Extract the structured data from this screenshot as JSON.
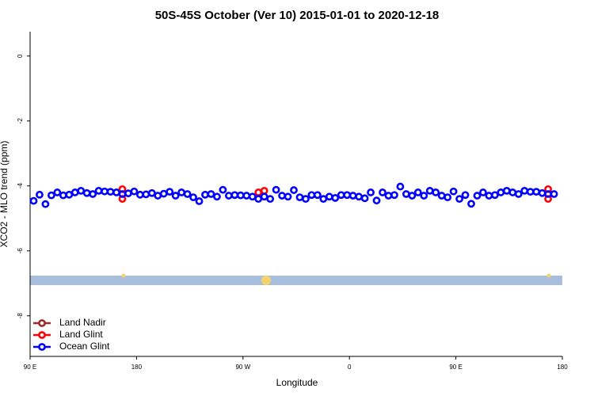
{
  "chart_data": {
    "type": "scatter",
    "title": "50S-45S October (Ver 10)   2015-01-01 to 2020-12-18",
    "xlabel": "Longitude",
    "ylabel": "XCO2 - MLO trend (ppm)",
    "xlim": [
      90,
      540
    ],
    "ylim": [
      -9.25,
      0.75
    ],
    "xticks": [
      {
        "value": 90,
        "label": "90 E"
      },
      180,
      {
        "value": 270,
        "label": "90 W"
      },
      {
        "value": 360,
        "label": "0"
      },
      {
        "value": 450,
        "label": "90 E"
      },
      {
        "value": 540,
        "label": "180"
      }
    ],
    "yticks": [
      0,
      -2,
      -4,
      -6,
      -8
    ],
    "legend": "bottom-left",
    "series": [
      {
        "name": "Land Nadir",
        "color": "#9b2a2a",
        "x": [],
        "values": []
      },
      {
        "name": "Land Glint",
        "color": "#ff0000",
        "x": [
          168,
          168,
          283,
          288,
          528,
          528
        ],
        "values": [
          -4.1,
          -4.4,
          -4.2,
          -4.15,
          -4.1,
          -4.4
        ]
      },
      {
        "name": "Ocean Glint",
        "color": "#0000ff",
        "x": [
          93,
          98,
          103,
          108,
          113,
          118,
          123,
          128,
          133,
          138,
          143,
          148,
          153,
          158,
          163,
          168,
          173,
          178,
          183,
          188,
          193,
          198,
          203,
          208,
          213,
          218,
          223,
          228,
          233,
          238,
          243,
          248,
          253,
          258,
          263,
          268,
          273,
          278,
          283,
          288,
          293,
          298,
          303,
          308,
          313,
          318,
          323,
          328,
          333,
          338,
          343,
          348,
          353,
          358,
          363,
          368,
          373,
          378,
          383,
          388,
          393,
          398,
          403,
          408,
          413,
          418,
          423,
          428,
          433,
          438,
          443,
          448,
          453,
          458,
          463,
          468,
          473,
          478,
          483,
          488,
          493,
          498,
          503,
          508,
          513,
          518,
          523,
          528,
          533
        ],
        "values": [
          -4.46,
          -4.27,
          -4.56,
          -4.29,
          -4.2,
          -4.29,
          -4.27,
          -4.2,
          -4.15,
          -4.22,
          -4.25,
          -4.15,
          -4.17,
          -4.18,
          -4.2,
          -4.25,
          -4.23,
          -4.17,
          -4.27,
          -4.26,
          -4.22,
          -4.3,
          -4.24,
          -4.18,
          -4.3,
          -4.2,
          -4.25,
          -4.35,
          -4.47,
          -4.27,
          -4.25,
          -4.33,
          -4.12,
          -4.3,
          -4.28,
          -4.29,
          -4.3,
          -4.33,
          -4.4,
          -4.33,
          -4.4,
          -4.12,
          -4.3,
          -4.33,
          -4.13,
          -4.35,
          -4.4,
          -4.28,
          -4.28,
          -4.4,
          -4.33,
          -4.37,
          -4.28,
          -4.28,
          -4.3,
          -4.33,
          -4.38,
          -4.2,
          -4.45,
          -4.2,
          -4.3,
          -4.28,
          -4.02,
          -4.25,
          -4.3,
          -4.2,
          -4.3,
          -4.15,
          -4.2,
          -4.3,
          -4.35,
          -4.17,
          -4.4,
          -4.28,
          -4.55,
          -4.3,
          -4.2,
          -4.3,
          -4.28,
          -4.2,
          -4.15,
          -4.2,
          -4.25,
          -4.15,
          -4.18,
          -4.18,
          -4.22,
          -4.25,
          -4.25
        ]
      }
    ]
  }
}
